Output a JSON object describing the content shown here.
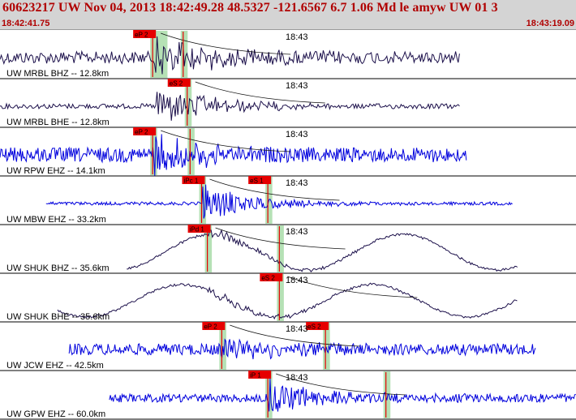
{
  "header": {
    "event_line": "60623217 UW Nov 04, 2013 18:42:49.28   48.5327 -121.6567  6.7 1.06 Md le amyw UW 01   3",
    "time_start": "18:42:41.75",
    "time_end": "18:43:19.09"
  },
  "colors": {
    "header_bg": "#d4d4d4",
    "header_text": "#b00000",
    "trace_dark": "#1b0f4a",
    "trace_blue": "#0000dd",
    "pick_flag": "#e60000",
    "pick_window": "#a8dca8",
    "travel_curve": "#111111"
  },
  "panels": [
    {
      "label": "UW MRBL BHZ -- 12.8km",
      "time_mark": "18:43",
      "color": "dark",
      "start": 0.0,
      "end": 0.8,
      "amp": 15,
      "onset": 0.27,
      "onset_amp": 24,
      "decay": 0.12,
      "mode": "noise",
      "picks": [
        {
          "label": "eP 2",
          "x": 0.265,
          "win": 0.03
        },
        {
          "label": "",
          "x": 0.318,
          "win": 0.012
        }
      ]
    },
    {
      "label": "UW MRBL BHE -- 12.8km",
      "time_mark": "18:43",
      "color": "dark",
      "start": 0.0,
      "end": 0.8,
      "amp": 6,
      "onset": 0.27,
      "onset_amp": 26,
      "decay": 0.1,
      "mode": "noise",
      "picks": [
        {
          "label": "eS 2",
          "x": 0.325,
          "win": 0.012
        }
      ]
    },
    {
      "label": "UW RPW EHZ -- 14.1km",
      "time_mark": "18:43",
      "color": "blue",
      "start": 0.0,
      "end": 0.81,
      "amp": 18,
      "onset": 0.265,
      "onset_amp": 28,
      "decay": 0.08,
      "mode": "noise",
      "picks": [
        {
          "label": "eP 2",
          "x": 0.265,
          "win": 0.012
        },
        {
          "label": "",
          "x": 0.33,
          "win": 0.012
        }
      ]
    },
    {
      "label": "UW MBW EHZ -- 33.2km",
      "time_mark": "18:43",
      "color": "blue",
      "start": 0.08,
      "end": 0.89,
      "amp": 4,
      "onset": 0.35,
      "onset_amp": 24,
      "decay": 0.09,
      "mode": "noise",
      "picks": [
        {
          "label": "iPc 1",
          "x": 0.35,
          "win": 0.012
        },
        {
          "label": "eS 1",
          "x": 0.465,
          "win": 0.012
        }
      ]
    },
    {
      "label": "UW SHUK BHZ -- 35.6km",
      "time_mark": "18:43",
      "color": "dark",
      "start": 0.22,
      "end": 0.9,
      "amp": 22,
      "onset": 0.36,
      "onset_amp": 8,
      "decay": 0.1,
      "mode": "wave",
      "picks": [
        {
          "label": "iPd 1",
          "x": 0.36,
          "win": 0.012
        },
        {
          "label": "",
          "x": 0.485,
          "win": 0.012
        }
      ]
    },
    {
      "label": "UW SHUK BHE -- 35.6km",
      "time_mark": "18:43",
      "color": "dark",
      "start": 0.1,
      "end": 0.9,
      "amp": 20,
      "onset": 0.36,
      "onset_amp": 6,
      "decay": 0.12,
      "mode": "wave",
      "picks": [
        {
          "label": "eS 2",
          "x": 0.485,
          "win": 0.012
        }
      ]
    },
    {
      "label": "UW JCW EHZ -- 42.5km",
      "time_mark": "18:43",
      "color": "blue",
      "start": 0.12,
      "end": 0.93,
      "amp": 14,
      "onset": 0.385,
      "onset_amp": 14,
      "decay": 0.1,
      "mode": "noise",
      "picks": [
        {
          "label": "eP 2",
          "x": 0.385,
          "win": 0.012
        },
        {
          "label": "eS 2",
          "x": 0.565,
          "win": 0.012
        }
      ]
    },
    {
      "label": "UW GPW EHZ -- 60.0km",
      "time_mark": "18:43",
      "color": "blue",
      "start": 0.19,
      "end": 1.0,
      "amp": 10,
      "onset": 0.465,
      "onset_amp": 22,
      "decay": 0.1,
      "mode": "noise",
      "picks": [
        {
          "label": "iP 1",
          "x": 0.465,
          "win": 0.012
        },
        {
          "label": "",
          "x": 0.67,
          "win": 0.012
        }
      ]
    }
  ]
}
